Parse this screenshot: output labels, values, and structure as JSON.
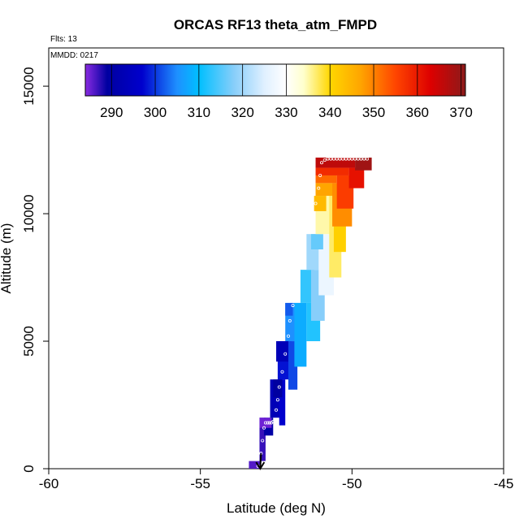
{
  "chart_data": {
    "type": "heatmap",
    "title": "ORCAS RF13 theta_atm_FMPD",
    "flights_note": "Flts: 13",
    "date_note": "MMDD: 0217",
    "xlabel": "Latitude (deg N)",
    "ylabel": "Altitude (m)",
    "xlim": [
      -60,
      -45
    ],
    "ylim": [
      0,
      16500
    ],
    "x_ticks": [
      -60,
      -55,
      -50,
      -45
    ],
    "x_tick_labels": [
      "-60",
      "-55",
      "-50",
      "-45"
    ],
    "y_ticks": [
      0,
      5000,
      10000,
      15000
    ],
    "y_tick_labels": [
      "0",
      "5000",
      "10000",
      "15000"
    ],
    "colorbar": {
      "min": 284,
      "max": 371,
      "ticks": [
        290,
        300,
        310,
        320,
        330,
        340,
        350,
        360,
        370
      ],
      "tick_labels": [
        "290",
        "300",
        "310",
        "320",
        "330",
        "340",
        "350",
        "360",
        "370"
      ],
      "stops": [
        {
          "value": 284,
          "color": "#8a2be2"
        },
        {
          "value": 289,
          "color": "#0000a0"
        },
        {
          "value": 297,
          "color": "#0000cd"
        },
        {
          "value": 305,
          "color": "#1e90ff"
        },
        {
          "value": 310,
          "color": "#00bfff"
        },
        {
          "value": 318,
          "color": "#87cefa"
        },
        {
          "value": 325,
          "color": "#e0f0ff"
        },
        {
          "value": 330,
          "color": "#ffffff"
        },
        {
          "value": 334,
          "color": "#ffffcc"
        },
        {
          "value": 340,
          "color": "#ffd700"
        },
        {
          "value": 347,
          "color": "#ffa500"
        },
        {
          "value": 355,
          "color": "#ff4500"
        },
        {
          "value": 363,
          "color": "#dd0000"
        },
        {
          "value": 371,
          "color": "#8b1a1a"
        }
      ]
    },
    "cells": [
      {
        "lat0": -53.4,
        "lat1": -53.0,
        "alt0": 0,
        "alt1": 300,
        "theta": 286
      },
      {
        "lat0": -53.05,
        "lat1": -52.85,
        "alt0": 300,
        "alt1": 2000,
        "theta": 287
      },
      {
        "lat0": -52.9,
        "lat1": -52.6,
        "alt0": 1300,
        "alt1": 2000,
        "theta": 290
      },
      {
        "lat0": -53.05,
        "lat1": -52.65,
        "alt0": 1600,
        "alt1": 2000,
        "theta": 285
      },
      {
        "lat0": -52.7,
        "lat1": -52.3,
        "alt0": 2000,
        "alt1": 3500,
        "theta": 293
      },
      {
        "lat0": -52.4,
        "lat1": -52.2,
        "alt0": 1700,
        "alt1": 3500,
        "theta": 297
      },
      {
        "lat0": -52.6,
        "lat1": -52.3,
        "alt0": 2800,
        "alt1": 3500,
        "theta": 289
      },
      {
        "lat0": -52.45,
        "lat1": -52.0,
        "alt0": 3500,
        "alt1": 5000,
        "theta": 298
      },
      {
        "lat0": -52.1,
        "lat1": -51.8,
        "alt0": 3100,
        "alt1": 5000,
        "theta": 301
      },
      {
        "lat0": -52.5,
        "lat1": -52.1,
        "alt0": 4200,
        "alt1": 5000,
        "theta": 293
      },
      {
        "lat0": -52.2,
        "lat1": -51.7,
        "alt0": 5000,
        "alt1": 6500,
        "theta": 305
      },
      {
        "lat0": -51.9,
        "lat1": -51.5,
        "alt0": 4000,
        "alt1": 6500,
        "theta": 308
      },
      {
        "lat0": -52.2,
        "lat1": -51.95,
        "alt0": 6000,
        "alt1": 6500,
        "theta": 302
      },
      {
        "lat0": -51.7,
        "lat1": -51.25,
        "alt0": 6500,
        "alt1": 7800,
        "theta": 313
      },
      {
        "lat0": -51.5,
        "lat1": -51.05,
        "alt0": 5000,
        "alt1": 6500,
        "theta": 312
      },
      {
        "lat0": -51.35,
        "lat1": -50.9,
        "alt0": 5800,
        "alt1": 7800,
        "theta": 318
      },
      {
        "lat0": -51.5,
        "lat1": -51.05,
        "alt0": 7800,
        "alt1": 9200,
        "theta": 320
      },
      {
        "lat0": -51.1,
        "lat1": -50.6,
        "alt0": 6800,
        "alt1": 9200,
        "theta": 327
      },
      {
        "lat0": -51.35,
        "lat1": -50.95,
        "alt0": 8600,
        "alt1": 9200,
        "theta": 316
      },
      {
        "lat0": -51.2,
        "lat1": -50.7,
        "alt0": 9200,
        "alt1": 10700,
        "theta": 335
      },
      {
        "lat0": -50.75,
        "lat1": -50.35,
        "alt0": 7500,
        "alt1": 10700,
        "theta": 337
      },
      {
        "lat0": -50.6,
        "lat1": -50.2,
        "alt0": 8500,
        "alt1": 10700,
        "theta": 341
      },
      {
        "lat0": -51.25,
        "lat1": -50.85,
        "alt0": 10100,
        "alt1": 10700,
        "theta": 344
      },
      {
        "lat0": -51.2,
        "lat1": -50.6,
        "alt0": 10700,
        "alt1": 11200,
        "theta": 347
      },
      {
        "lat0": -50.65,
        "lat1": -50.0,
        "alt0": 9500,
        "alt1": 11200,
        "theta": 349
      },
      {
        "lat0": -51.2,
        "lat1": -50.5,
        "alt0": 11200,
        "alt1": 11500,
        "theta": 352
      },
      {
        "lat0": -50.5,
        "lat1": -49.95,
        "alt0": 10200,
        "alt1": 11500,
        "theta": 356
      },
      {
        "lat0": -51.2,
        "lat1": -50.1,
        "alt0": 11500,
        "alt1": 11800,
        "theta": 358
      },
      {
        "lat0": -50.1,
        "lat1": -49.6,
        "alt0": 11000,
        "alt1": 11800,
        "theta": 361
      },
      {
        "lat0": -51.2,
        "lat1": -49.9,
        "alt0": 11800,
        "alt1": 12200,
        "theta": 366
      },
      {
        "lat0": -49.9,
        "lat1": -49.35,
        "alt0": 11700,
        "alt1": 12200,
        "theta": 369
      }
    ],
    "track": [
      {
        "lat": -53.1,
        "alt": 100
      },
      {
        "lat": -53.0,
        "alt": 600
      },
      {
        "lat": -52.95,
        "alt": 1100
      },
      {
        "lat": -52.9,
        "alt": 1600
      },
      {
        "lat": -52.85,
        "alt": 1800
      },
      {
        "lat": -52.78,
        "alt": 1800
      },
      {
        "lat": -52.72,
        "alt": 1800
      },
      {
        "lat": -52.66,
        "alt": 1800
      },
      {
        "lat": -52.6,
        "alt": 1850
      },
      {
        "lat": -52.5,
        "alt": 2300
      },
      {
        "lat": -52.45,
        "alt": 2700
      },
      {
        "lat": -52.4,
        "alt": 3200
      },
      {
        "lat": -52.3,
        "alt": 3800
      },
      {
        "lat": -52.2,
        "alt": 4500
      },
      {
        "lat": -52.1,
        "alt": 5200
      },
      {
        "lat": -52.05,
        "alt": 5800
      },
      {
        "lat": -51.95,
        "alt": 6400
      },
      {
        "lat": -51.9,
        "alt": 7100
      },
      {
        "lat": -51.8,
        "alt": 7700
      },
      {
        "lat": -51.7,
        "alt": 8400
      },
      {
        "lat": -51.6,
        "alt": 9000
      },
      {
        "lat": -51.45,
        "alt": 9500
      },
      {
        "lat": -51.3,
        "alt": 10000
      },
      {
        "lat": -51.2,
        "alt": 10400
      },
      {
        "lat": -51.1,
        "alt": 11000
      },
      {
        "lat": -51.05,
        "alt": 11500
      },
      {
        "lat": -51.0,
        "alt": 12000
      },
      {
        "lat": -50.9,
        "alt": 12100
      },
      {
        "lat": -50.8,
        "alt": 12150
      },
      {
        "lat": -50.7,
        "alt": 12150
      },
      {
        "lat": -50.6,
        "alt": 12150
      },
      {
        "lat": -50.5,
        "alt": 12150
      },
      {
        "lat": -50.4,
        "alt": 12150
      },
      {
        "lat": -50.3,
        "alt": 12150
      },
      {
        "lat": -50.2,
        "alt": 12150
      },
      {
        "lat": -50.1,
        "alt": 12150
      },
      {
        "lat": -50.0,
        "alt": 12150
      },
      {
        "lat": -49.9,
        "alt": 12150
      },
      {
        "lat": -49.8,
        "alt": 12150
      },
      {
        "lat": -49.7,
        "alt": 12150
      },
      {
        "lat": -49.6,
        "alt": 12150
      },
      {
        "lat": -49.5,
        "alt": 12150
      }
    ],
    "arrow": {
      "lat": -53.0,
      "alt_from": 600,
      "alt_to": 0
    }
  }
}
